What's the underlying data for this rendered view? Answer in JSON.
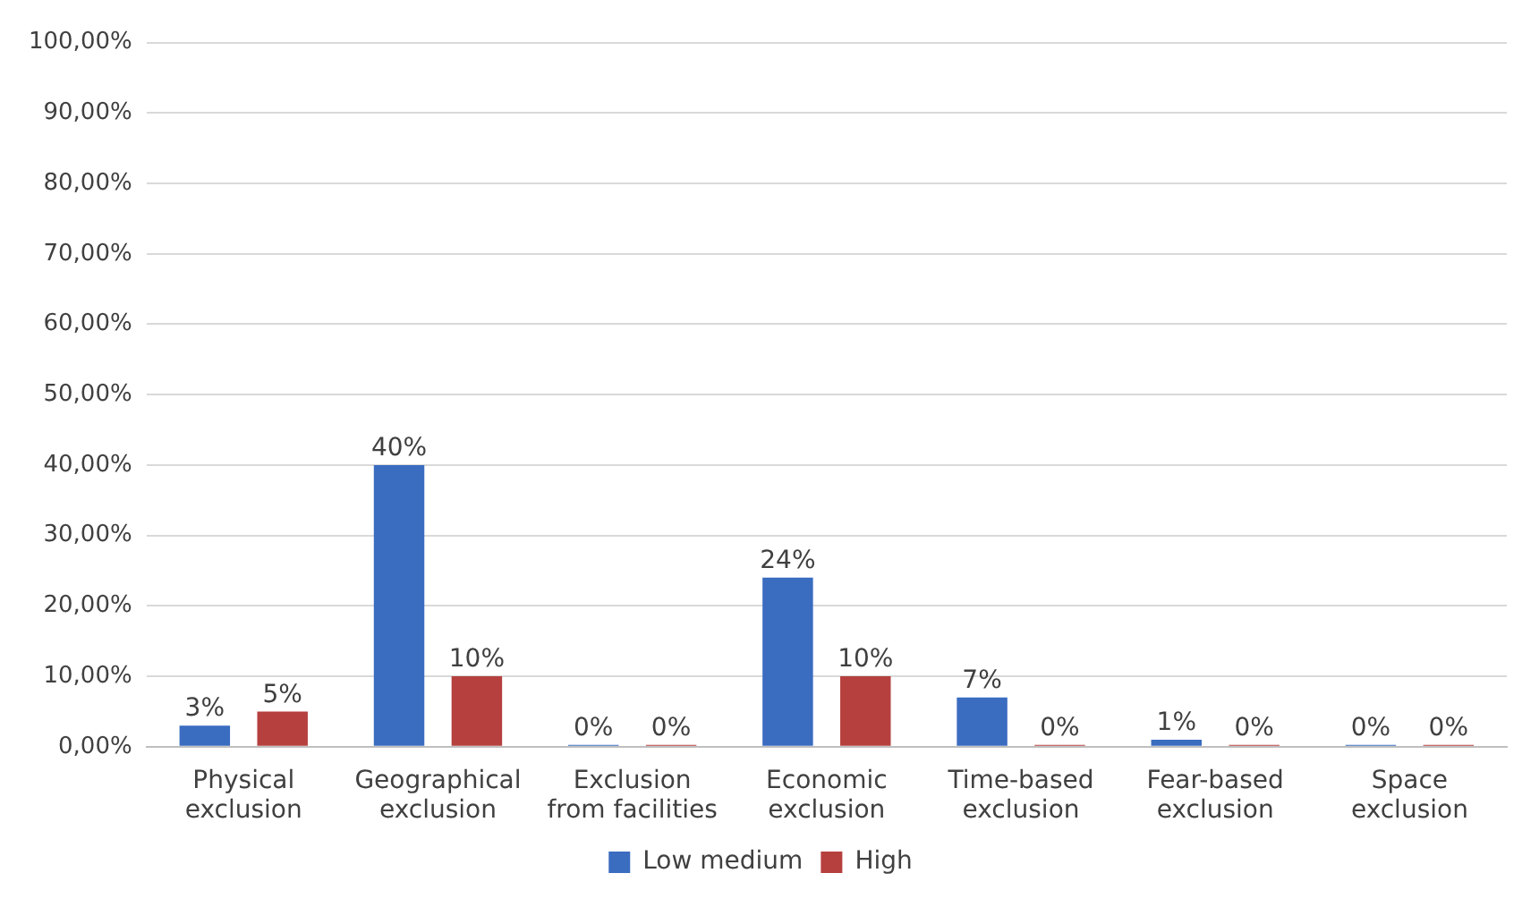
{
  "chart_data": {
    "type": "bar",
    "categories": [
      "Physical exclusion",
      "Geographical exclusion",
      "Exclusion from facilities",
      "Economic exclusion",
      "Time-based exclusion",
      "Fear-based exclusion",
      "Space exclusion"
    ],
    "series": [
      {
        "name": "Low medium",
        "color": "#3a6cc0",
        "values": [
          3,
          40,
          0,
          24,
          7,
          1,
          0
        ],
        "value_labels": [
          "3%",
          "40%",
          "0%",
          "24%",
          "7%",
          "1%",
          "0%"
        ]
      },
      {
        "name": "High",
        "color": "#b5403e",
        "values": [
          5,
          10,
          0,
          10,
          0,
          0,
          0
        ],
        "value_labels": [
          "5%",
          "10%",
          "0%",
          "10%",
          "0%",
          "0%",
          "0%"
        ]
      }
    ],
    "ylim": [
      0,
      100
    ],
    "yticks": [
      {
        "value": 0,
        "label": "0,00%"
      },
      {
        "value": 10,
        "label": "10,00%"
      },
      {
        "value": 20,
        "label": "20,00%"
      },
      {
        "value": 30,
        "label": "30,00%"
      },
      {
        "value": 40,
        "label": "40,00%"
      },
      {
        "value": 50,
        "label": "50,00%"
      },
      {
        "value": 60,
        "label": "60,00%"
      },
      {
        "value": 70,
        "label": "70,00%"
      },
      {
        "value": 80,
        "label": "80,00%"
      },
      {
        "value": 90,
        "label": "90,00%"
      },
      {
        "value": 100,
        "label": "100,00%"
      }
    ],
    "grid": "y",
    "legend": "bottom"
  }
}
